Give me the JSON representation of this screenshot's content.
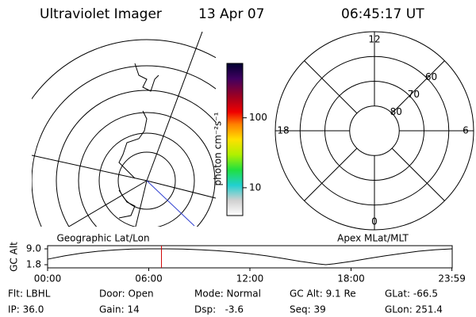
{
  "header": {
    "title": "Ultraviolet Imager",
    "date": "13 Apr 07",
    "time": "06:45:17 UT"
  },
  "geographic": {
    "label": "Geographic Lat/Lon"
  },
  "colorbar": {
    "label": "photon cm⁻²s⁻¹",
    "scale": "log",
    "lim": [
      4,
      600
    ],
    "ticks": [
      10,
      100
    ]
  },
  "magnetic": {
    "label": "Apex MLat/MLT",
    "lat_lim": [
      50,
      90
    ],
    "lat_ticks": [
      80,
      70,
      60
    ],
    "mlt_ticks": [
      12,
      18,
      6,
      0
    ]
  },
  "altitude": {
    "ylabel": "GC Alt",
    "ylim": [
      1.8,
      9.0
    ],
    "yticks": [
      {
        "value": 9,
        "label": "9.0"
      },
      1.8
    ],
    "xlim": [
      0,
      24
    ],
    "xticks": [
      {
        "value": 0,
        "label": "00:00"
      },
      {
        "value": 6,
        "label": "06:00"
      },
      {
        "value": 12,
        "label": "12:00"
      },
      {
        "value": 18,
        "label": "18:00"
      },
      {
        "value": 23.983,
        "label": "23:59"
      }
    ],
    "x": [
      0,
      1,
      2,
      3,
      4,
      5,
      6,
      7,
      8,
      9,
      10,
      11,
      12,
      13,
      14,
      15,
      16,
      16.5,
      17,
      18,
      19,
      20,
      21,
      22,
      23,
      23.983
    ],
    "values": [
      4.3,
      5.8,
      7.0,
      7.9,
      8.5,
      8.9,
      9.0,
      9.0,
      8.9,
      8.6,
      8.2,
      7.6,
      6.8,
      5.8,
      4.6,
      3.3,
      2.2,
      1.8,
      2.2,
      3.3,
      4.6,
      5.8,
      6.9,
      7.9,
      8.6,
      9.0
    ],
    "marker": 6.755
  },
  "footer": {
    "rows": [
      [
        "Flt: LBHL",
        "Door: Open",
        "Mode: Normal",
        "GC Alt: 9.1 Re",
        "GLat: -66.5"
      ],
      [
        "IP: 36.0",
        "Gain: 14",
        "Dsp:   -3.6",
        "Seq: 39",
        "GLon: 251.4"
      ]
    ]
  }
}
